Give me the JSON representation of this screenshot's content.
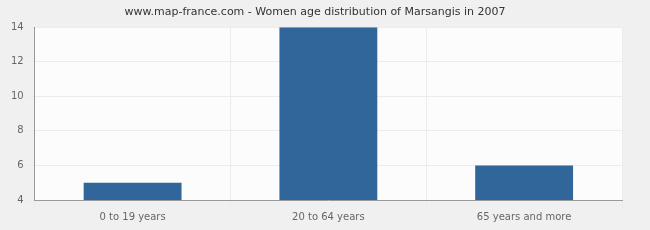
{
  "chart_data": {
    "type": "bar",
    "title": "www.map-france.com - Women age distribution of Marsangis in 2007",
    "categories": [
      "0 to 19 years",
      "20 to 64 years",
      "65 years and more"
    ],
    "values": [
      5,
      14,
      6
    ],
    "color": "#31669a",
    "ylim": [
      4,
      14
    ],
    "yticks": [
      4,
      6,
      8,
      10,
      12,
      14
    ],
    "grid": true
  }
}
